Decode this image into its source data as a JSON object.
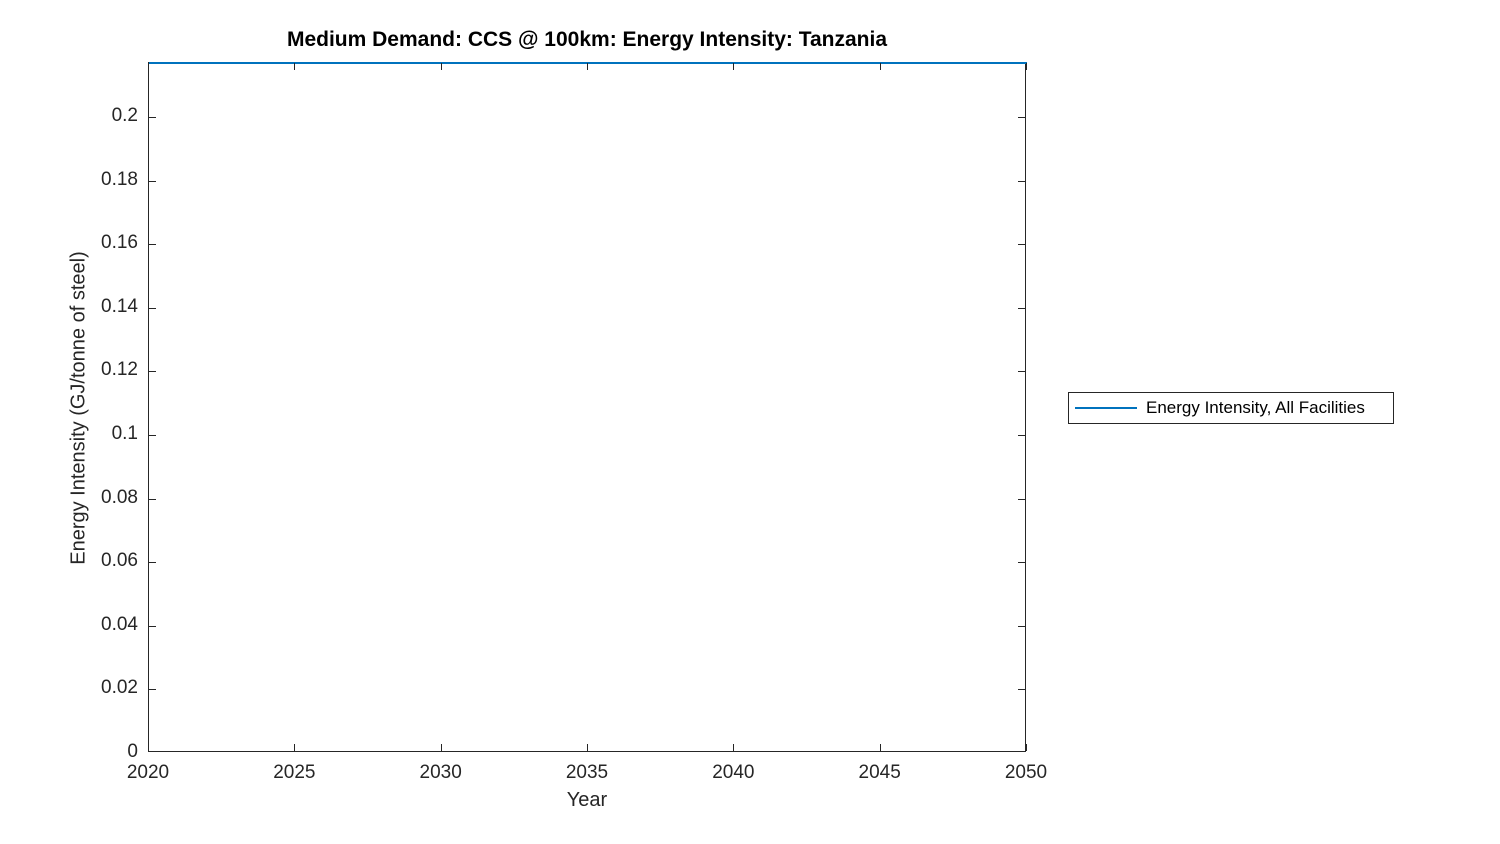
{
  "figure": {
    "title": "Medium Demand: CCS @ 100km: Energy Intensity: Tanzania"
  },
  "legend": {
    "entries": [
      {
        "label": "Energy Intensity, All Facilities",
        "color": "#0072BD",
        "sample": "line"
      }
    ],
    "border_color": "#262626",
    "background": "#ffffff"
  },
  "colors": {
    "series_line": "#0072BD",
    "axis": "#262626",
    "tick_label": "#262626",
    "title_text": "#000000",
    "background": "#ffffff"
  },
  "chart_data": {
    "type": "line",
    "title": "Medium Demand: CCS @ 100km: Energy Intensity: Tanzania",
    "xlabel": "Year",
    "ylabel": "Energy Intensity (GJ/tonne of steel)",
    "xlim": [
      2020,
      2050
    ],
    "ylim": [
      0,
      0.217
    ],
    "x_ticks": [
      2020,
      2025,
      2030,
      2035,
      2040,
      2045,
      2050
    ],
    "x_tick_labels": [
      "2020",
      "2025",
      "2030",
      "2035",
      "2040",
      "2045",
      "2050"
    ],
    "y_ticks": [
      0,
      0.02,
      0.04,
      0.06,
      0.08,
      0.1,
      0.12,
      0.14,
      0.16,
      0.18,
      0.2
    ],
    "y_tick_labels": [
      "0",
      "0.02",
      "0.04",
      "0.06",
      "0.08",
      "0.1",
      "0.12",
      "0.14",
      "0.16",
      "0.18",
      "0.2"
    ],
    "grid": false,
    "box": true,
    "tick_direction": "in",
    "legend_position": "outside-right",
    "series": [
      {
        "name": "Energy Intensity, All Facilities",
        "color": "#0072BD",
        "x": [
          2020,
          2050
        ],
        "values": [
          0.217,
          0.217
        ]
      }
    ]
  }
}
